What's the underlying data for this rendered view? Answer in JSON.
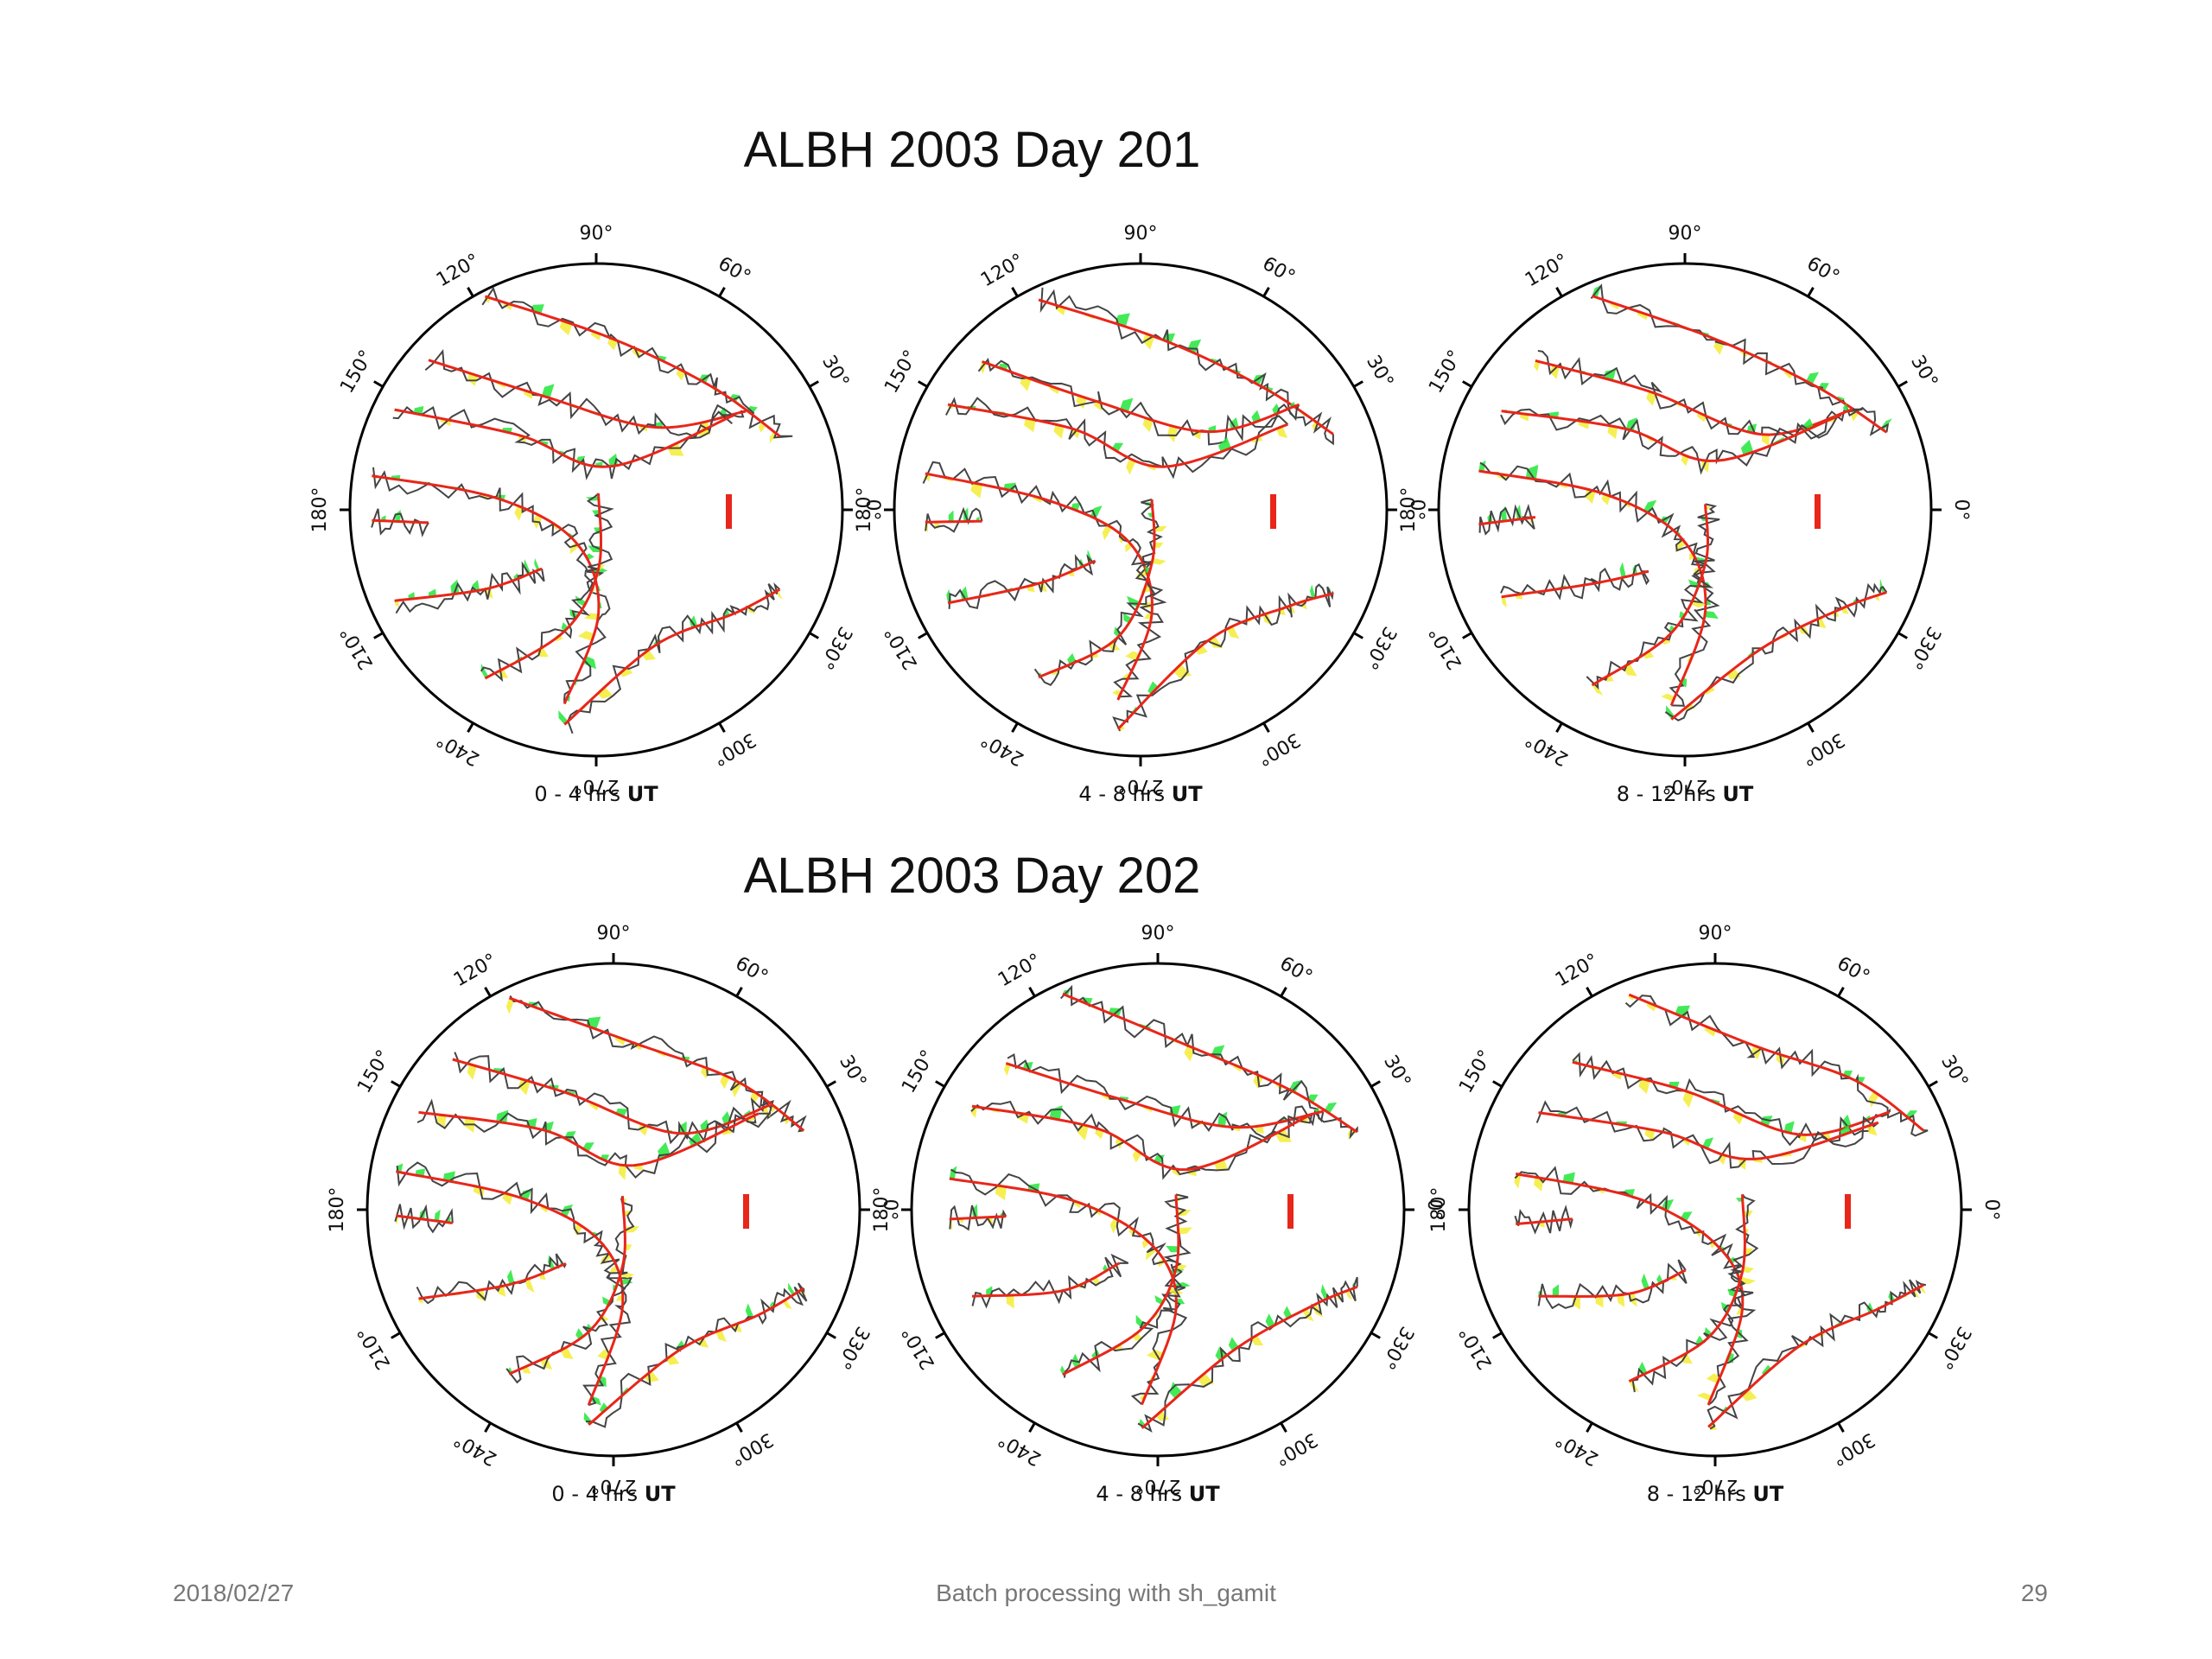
{
  "slide": {
    "footer_date": "2018/02/27",
    "footer_center": "Batch processing with sh_gamit",
    "page_number": "29"
  },
  "colors": {
    "residual_line": "#444444",
    "model_line": "#e8261a",
    "fill_positive": "#f3ec35",
    "fill_negative": "#22e63a",
    "scale_bar": "#e8261a",
    "circle": "#000000"
  },
  "chart_data": [
    {
      "type": "polar-sky-plot",
      "title": "ALBH 2003 Day 201",
      "panels": [
        {
          "label_range": "0 - 4 hrs",
          "label_unit": "UT",
          "azimuth_labels": [
            "90°",
            "60°",
            "30°",
            "0°",
            "330°",
            "300°",
            "270°",
            "240°",
            "210°",
            "180°",
            "150°",
            "120°"
          ]
        },
        {
          "label_range": "4 - 8 hrs",
          "label_unit": "UT",
          "azimuth_labels": [
            "90°",
            "60°",
            "30°",
            "0°",
            "330°",
            "300°",
            "270°",
            "240°",
            "210°",
            "180°",
            "150°",
            "120°"
          ]
        },
        {
          "label_range": "8 - 12 hrs",
          "label_unit": "UT",
          "azimuth_labels": [
            "90°",
            "60°",
            "30°",
            "0°",
            "330°",
            "300°",
            "270°",
            "240°",
            "210°",
            "180°",
            "150°",
            "120°"
          ]
        }
      ]
    },
    {
      "type": "polar-sky-plot",
      "title": "ALBH 2003 Day 202",
      "panels": [
        {
          "label_range": "0 - 4 hrs",
          "label_unit": "UT",
          "azimuth_labels": [
            "90°",
            "60°",
            "30°",
            "0°",
            "330°",
            "300°",
            "270°",
            "240°",
            "210°",
            "180°",
            "150°",
            "120°"
          ]
        },
        {
          "label_range": "4 - 8 hrs",
          "label_unit": "UT",
          "azimuth_labels": [
            "90°",
            "60°",
            "30°",
            "0°",
            "330°",
            "300°",
            "270°",
            "240°",
            "210°",
            "180°",
            "150°",
            "120°"
          ]
        },
        {
          "label_range": "8 - 12 hrs",
          "label_unit": "UT",
          "azimuth_labels": [
            "90°",
            "60°",
            "30°",
            "0°",
            "330°",
            "300°",
            "270°",
            "240°",
            "210°",
            "180°",
            "150°",
            "120°"
          ]
        }
      ]
    }
  ]
}
